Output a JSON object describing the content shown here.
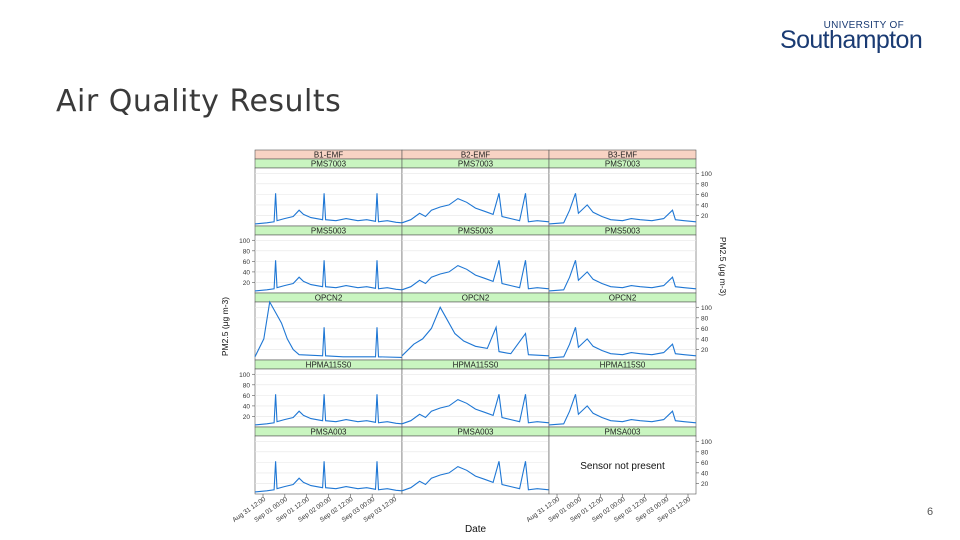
{
  "slide": {
    "title": "Air Quality Results",
    "page_number": "6"
  },
  "logo": {
    "top_text": "UNIVERSITY OF",
    "main_text": "Southampton"
  },
  "chart_data": {
    "type": "line",
    "ylabel": "PM2.5 (μg m-3)",
    "xlabel": "Date",
    "ylim": [
      0,
      110
    ],
    "y_ticks": [
      20,
      40,
      60,
      80,
      100
    ],
    "columns": [
      "B1-EMF",
      "B2-EMF",
      "B3-EMF"
    ],
    "rows": [
      "PMS7003",
      "PMS5003",
      "OPCN2",
      "HPMA115S0",
      "PMSA003"
    ],
    "x_tick_labels": [
      "Aug 31 12:00",
      "Sep 01 00:00",
      "Sep 01 12:00",
      "Sep 02 00:00",
      "Sep 02 12:00",
      "Sep 03 00:00",
      "Sep 03 12:00"
    ],
    "missing_panel_text": "Sensor not present",
    "missing_panel": {
      "row": 4,
      "col": 2
    },
    "line_color": "#1f77d4",
    "strip_colors": {
      "column": "#f8d3c4",
      "row": "#c9f5c0"
    },
    "series_shape": {
      "col_0": [
        {
          "x": 0.0,
          "y": 4
        },
        {
          "x": 0.08,
          "y": 6
        },
        {
          "x": 0.13,
          "y": 8
        },
        {
          "x": 0.14,
          "y": 62
        },
        {
          "x": 0.15,
          "y": 10
        },
        {
          "x": 0.2,
          "y": 14
        },
        {
          "x": 0.26,
          "y": 18
        },
        {
          "x": 0.3,
          "y": 30
        },
        {
          "x": 0.33,
          "y": 22
        },
        {
          "x": 0.38,
          "y": 16
        },
        {
          "x": 0.46,
          "y": 12
        },
        {
          "x": 0.47,
          "y": 62
        },
        {
          "x": 0.48,
          "y": 12
        },
        {
          "x": 0.55,
          "y": 10
        },
        {
          "x": 0.62,
          "y": 14
        },
        {
          "x": 0.7,
          "y": 10
        },
        {
          "x": 0.76,
          "y": 12
        },
        {
          "x": 0.82,
          "y": 9
        },
        {
          "x": 0.83,
          "y": 62
        },
        {
          "x": 0.84,
          "y": 8
        },
        {
          "x": 0.9,
          "y": 10
        },
        {
          "x": 0.96,
          "y": 7
        },
        {
          "x": 1.0,
          "y": 6
        }
      ],
      "col_1": [
        {
          "x": 0.0,
          "y": 6
        },
        {
          "x": 0.06,
          "y": 12
        },
        {
          "x": 0.12,
          "y": 24
        },
        {
          "x": 0.16,
          "y": 18
        },
        {
          "x": 0.2,
          "y": 30
        },
        {
          "x": 0.26,
          "y": 36
        },
        {
          "x": 0.32,
          "y": 40
        },
        {
          "x": 0.38,
          "y": 52
        },
        {
          "x": 0.44,
          "y": 45
        },
        {
          "x": 0.5,
          "y": 34
        },
        {
          "x": 0.56,
          "y": 28
        },
        {
          "x": 0.62,
          "y": 22
        },
        {
          "x": 0.66,
          "y": 62
        },
        {
          "x": 0.68,
          "y": 18
        },
        {
          "x": 0.74,
          "y": 14
        },
        {
          "x": 0.8,
          "y": 10
        },
        {
          "x": 0.84,
          "y": 62
        },
        {
          "x": 0.86,
          "y": 8
        },
        {
          "x": 0.92,
          "y": 10
        },
        {
          "x": 1.0,
          "y": 8
        }
      ],
      "col_2": [
        {
          "x": 0.0,
          "y": 4
        },
        {
          "x": 0.1,
          "y": 6
        },
        {
          "x": 0.14,
          "y": 30
        },
        {
          "x": 0.18,
          "y": 62
        },
        {
          "x": 0.2,
          "y": 24
        },
        {
          "x": 0.26,
          "y": 40
        },
        {
          "x": 0.3,
          "y": 26
        },
        {
          "x": 0.36,
          "y": 18
        },
        {
          "x": 0.42,
          "y": 12
        },
        {
          "x": 0.5,
          "y": 10
        },
        {
          "x": 0.56,
          "y": 14
        },
        {
          "x": 0.62,
          "y": 12
        },
        {
          "x": 0.7,
          "y": 10
        },
        {
          "x": 0.78,
          "y": 14
        },
        {
          "x": 0.84,
          "y": 30
        },
        {
          "x": 0.86,
          "y": 12
        },
        {
          "x": 0.92,
          "y": 10
        },
        {
          "x": 1.0,
          "y": 8
        }
      ]
    },
    "opc_overrides": {
      "col_0": [
        {
          "x": 0.0,
          "y": 6
        },
        {
          "x": 0.06,
          "y": 40
        },
        {
          "x": 0.1,
          "y": 110
        },
        {
          "x": 0.14,
          "y": 90
        },
        {
          "x": 0.18,
          "y": 70
        },
        {
          "x": 0.22,
          "y": 40
        },
        {
          "x": 0.26,
          "y": 20
        },
        {
          "x": 0.3,
          "y": 10
        },
        {
          "x": 0.46,
          "y": 8
        },
        {
          "x": 0.47,
          "y": 62
        },
        {
          "x": 0.48,
          "y": 8
        },
        {
          "x": 0.6,
          "y": 6
        },
        {
          "x": 0.82,
          "y": 6
        },
        {
          "x": 0.83,
          "y": 62
        },
        {
          "x": 0.84,
          "y": 6
        },
        {
          "x": 1.0,
          "y": 5
        }
      ],
      "col_1": [
        {
          "x": 0.0,
          "y": 8
        },
        {
          "x": 0.08,
          "y": 30
        },
        {
          "x": 0.14,
          "y": 40
        },
        {
          "x": 0.2,
          "y": 60
        },
        {
          "x": 0.26,
          "y": 100
        },
        {
          "x": 0.3,
          "y": 80
        },
        {
          "x": 0.36,
          "y": 50
        },
        {
          "x": 0.42,
          "y": 36
        },
        {
          "x": 0.5,
          "y": 26
        },
        {
          "x": 0.58,
          "y": 22
        },
        {
          "x": 0.64,
          "y": 62
        },
        {
          "x": 0.66,
          "y": 16
        },
        {
          "x": 0.74,
          "y": 12
        },
        {
          "x": 0.84,
          "y": 50
        },
        {
          "x": 0.86,
          "y": 10
        },
        {
          "x": 1.0,
          "y": 8
        }
      ]
    }
  }
}
